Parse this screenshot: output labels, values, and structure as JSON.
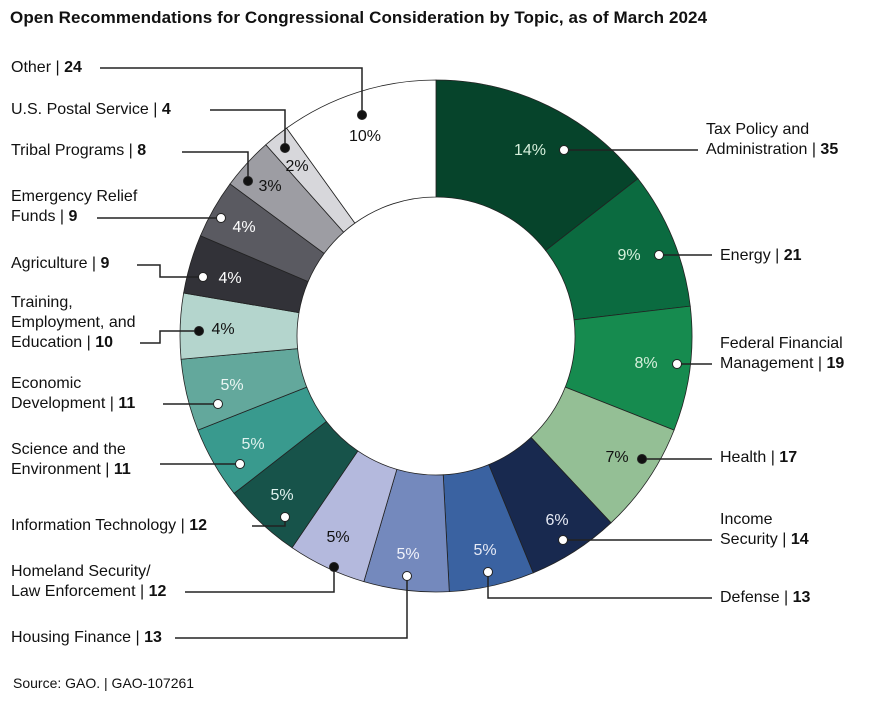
{
  "chart_data": {
    "type": "pie",
    "donut": true,
    "title": "Open Recommendations for Congressional Consideration by Topic, as of March 2024",
    "source": "Source: GAO.  |  GAO-107261",
    "direction": "clockwise from top",
    "slices": [
      {
        "name": "Tax Policy and\nAdministration",
        "value": 35,
        "percent": "14%",
        "color": "#06442b"
      },
      {
        "name": "Energy",
        "value": 21,
        "percent": "9%",
        "color": "#0b6b40"
      },
      {
        "name": "Federal Financial\nManagement",
        "value": 19,
        "percent": "8%",
        "color": "#168b4f"
      },
      {
        "name": "Health",
        "value": 17,
        "percent": "7%",
        "color": "#94bf95"
      },
      {
        "name": "Income\nSecurity",
        "value": 14,
        "percent": "6%",
        "color": "#18294f"
      },
      {
        "name": "Defense",
        "value": 13,
        "percent": "5%",
        "color": "#3a62a1"
      },
      {
        "name": "Housing Finance",
        "value": 13,
        "percent": "5%",
        "color": "#7489bd"
      },
      {
        "name": "Homeland Security/\nLaw Enforcement",
        "value": 12,
        "percent": "5%",
        "color": "#b4b9dd"
      },
      {
        "name": "Information Technology",
        "value": 12,
        "percent": "5%",
        "color": "#17534a"
      },
      {
        "name": "Science and the\nEnvironment",
        "value": 11,
        "percent": "5%",
        "color": "#399a8e"
      },
      {
        "name": "Economic\nDevelopment",
        "value": 11,
        "percent": "5%",
        "color": "#63a89c"
      },
      {
        "name": "Training,\nEmployment, and\nEducation",
        "value": 10,
        "percent": "4%",
        "color": "#b4d5cd"
      },
      {
        "name": "Agriculture",
        "value": 9,
        "percent": "4%",
        "color": "#323238"
      },
      {
        "name": "Emergency Relief\nFunds",
        "value": 9,
        "percent": "4%",
        "color": "#5a5a61"
      },
      {
        "name": "Tribal Programs",
        "value": 8,
        "percent": "3%",
        "color": "#9d9da3"
      },
      {
        "name": "U.S. Postal Service",
        "value": 4,
        "percent": "2%",
        "color": "#d7d7db"
      },
      {
        "name": "Other",
        "value": 24,
        "percent": "10%",
        "color": "#ffffff"
      }
    ]
  }
}
